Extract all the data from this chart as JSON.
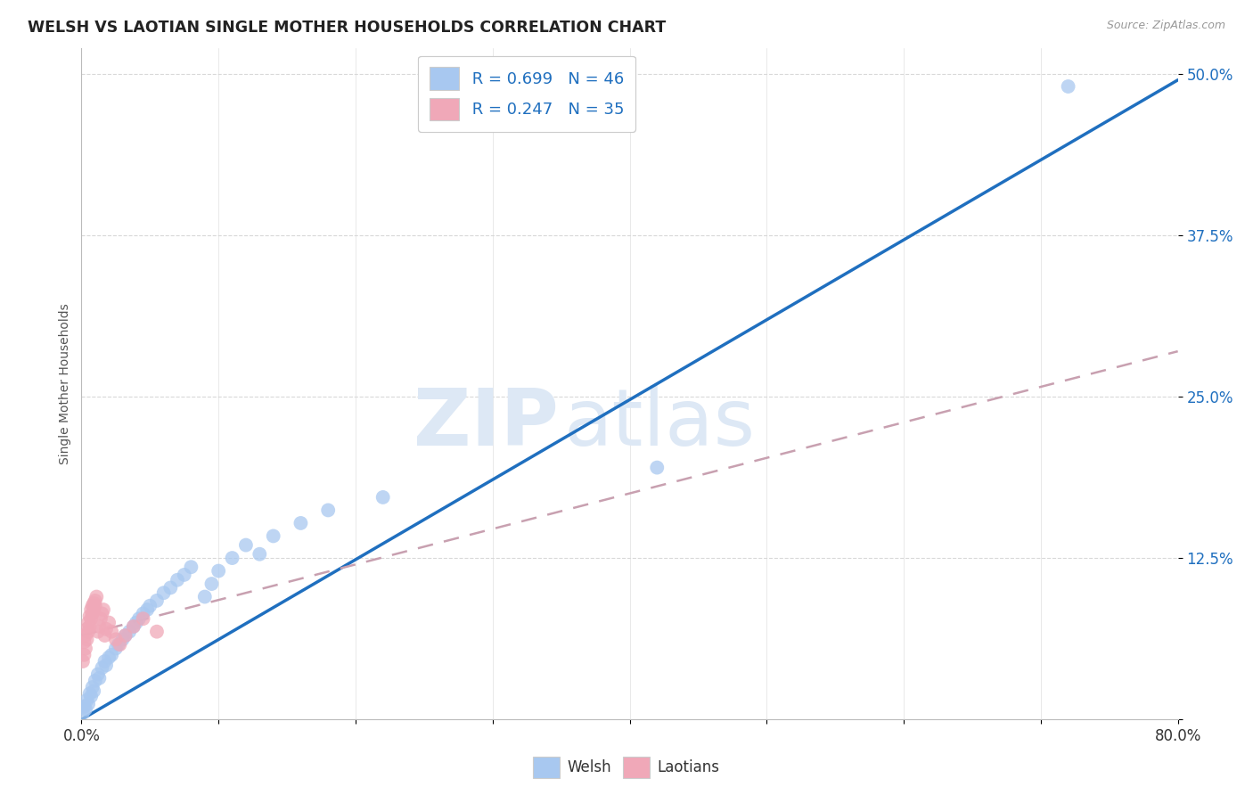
{
  "title": "WELSH VS LAOTIAN SINGLE MOTHER HOUSEHOLDS CORRELATION CHART",
  "source": "Source: ZipAtlas.com",
  "ylabel": "Single Mother Households",
  "welsh_R": 0.699,
  "welsh_N": 46,
  "laotian_R": 0.247,
  "laotian_N": 35,
  "welsh_color": "#a8c8f0",
  "laotian_color": "#f0a8b8",
  "welsh_line_color": "#1f6fbf",
  "laotian_line_color": "#c8a0b0",
  "watermark_zip": "ZIP",
  "watermark_atlas": "atlas",
  "background_color": "#ffffff",
  "xlim": [
    0.0,
    0.8
  ],
  "ylim": [
    0.0,
    0.52
  ],
  "y_ticks": [
    0.0,
    0.125,
    0.25,
    0.375,
    0.5
  ],
  "y_tick_labels": [
    "",
    "12.5%",
    "25.0%",
    "37.5%",
    "50.0%"
  ],
  "welsh_x": [
    0.001,
    0.002,
    0.003,
    0.004,
    0.005,
    0.006,
    0.007,
    0.008,
    0.009,
    0.01,
    0.012,
    0.013,
    0.015,
    0.017,
    0.018,
    0.02,
    0.022,
    0.025,
    0.027,
    0.03,
    0.032,
    0.035,
    0.038,
    0.04,
    0.042,
    0.045,
    0.048,
    0.05,
    0.055,
    0.06,
    0.065,
    0.07,
    0.075,
    0.08,
    0.09,
    0.095,
    0.1,
    0.11,
    0.12,
    0.13,
    0.14,
    0.16,
    0.18,
    0.22,
    0.42,
    0.72
  ],
  "welsh_y": [
    0.005,
    0.01,
    0.008,
    0.015,
    0.012,
    0.02,
    0.018,
    0.025,
    0.022,
    0.03,
    0.035,
    0.032,
    0.04,
    0.045,
    0.042,
    0.048,
    0.05,
    0.055,
    0.058,
    0.062,
    0.065,
    0.068,
    0.072,
    0.075,
    0.078,
    0.082,
    0.085,
    0.088,
    0.092,
    0.098,
    0.102,
    0.108,
    0.112,
    0.118,
    0.095,
    0.105,
    0.115,
    0.125,
    0.135,
    0.128,
    0.142,
    0.152,
    0.162,
    0.172,
    0.195,
    0.49
  ],
  "laotian_x": [
    0.001,
    0.002,
    0.002,
    0.003,
    0.003,
    0.004,
    0.004,
    0.005,
    0.005,
    0.006,
    0.006,
    0.007,
    0.007,
    0.008,
    0.008,
    0.009,
    0.009,
    0.01,
    0.01,
    0.011,
    0.012,
    0.013,
    0.014,
    0.015,
    0.016,
    0.017,
    0.018,
    0.02,
    0.022,
    0.025,
    0.028,
    0.032,
    0.038,
    0.045,
    0.055
  ],
  "laotian_y": [
    0.045,
    0.05,
    0.06,
    0.055,
    0.065,
    0.062,
    0.07,
    0.068,
    0.075,
    0.072,
    0.08,
    0.078,
    0.085,
    0.082,
    0.088,
    0.085,
    0.09,
    0.088,
    0.092,
    0.095,
    0.068,
    0.072,
    0.078,
    0.082,
    0.085,
    0.065,
    0.07,
    0.075,
    0.068,
    0.062,
    0.058,
    0.065,
    0.072,
    0.078,
    0.068
  ],
  "welsh_line_x": [
    0.0,
    0.8
  ],
  "welsh_line_y": [
    0.0,
    0.495
  ],
  "laotian_line_x": [
    0.0,
    0.8
  ],
  "laotian_line_y": [
    0.065,
    0.285
  ]
}
